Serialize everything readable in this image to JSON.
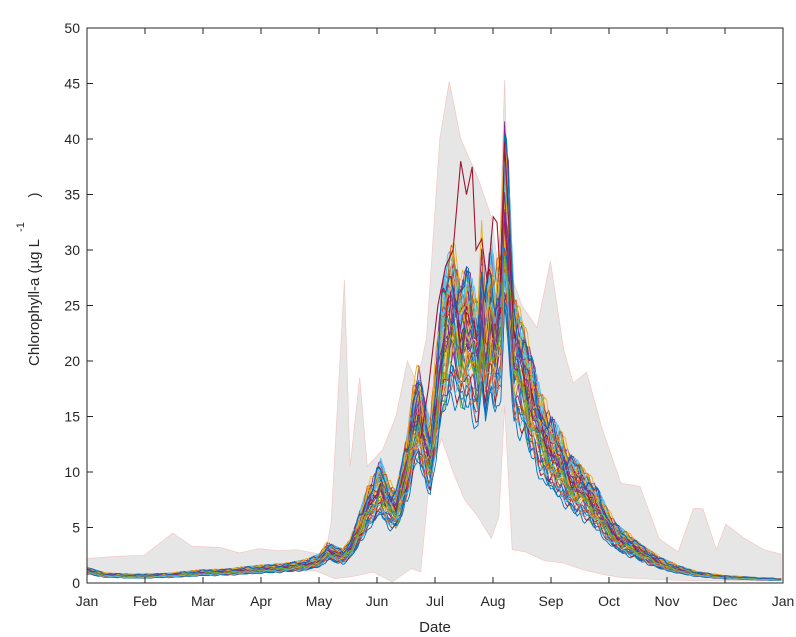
{
  "chart_data": {
    "type": "line",
    "xlabel": "Date",
    "ylabel": "Chlorophyll-a (µg L",
    "ylabel_superscript": "-1",
    "ylabel_close": ")",
    "ylim": [
      0,
      50
    ],
    "yticks": [
      0,
      5,
      10,
      15,
      20,
      25,
      30,
      35,
      40,
      45,
      50
    ],
    "xticks": [
      "Jan",
      "Feb",
      "Mar",
      "Apr",
      "May",
      "Jun",
      "Jul",
      "Aug",
      "Sep",
      "Oct",
      "Nov",
      "Dec",
      "Jan"
    ],
    "grid": false,
    "box": true,
    "envelope": {
      "color": "#e6e6e6",
      "edge_color": "#f4c7c3",
      "upper": [
        [
          0,
          2.2
        ],
        [
          15,
          2.4
        ],
        [
          30,
          2.5
        ],
        [
          45,
          4.5
        ],
        [
          55,
          3.3
        ],
        [
          70,
          3.2
        ],
        [
          80,
          2.7
        ],
        [
          90,
          3.1
        ],
        [
          100,
          2.9
        ],
        [
          110,
          3.0
        ],
        [
          125,
          2.5
        ],
        [
          128,
          5.5
        ],
        [
          135,
          27.3
        ],
        [
          138,
          10.5
        ],
        [
          143,
          18.5
        ],
        [
          147,
          10.5
        ],
        [
          155,
          12.0
        ],
        [
          162,
          15.0
        ],
        [
          168,
          20.0
        ],
        [
          173,
          18.0
        ],
        [
          178,
          22.0
        ],
        [
          185,
          40.0
        ],
        [
          190,
          45.2
        ],
        [
          196,
          40.0
        ],
        [
          205,
          36.5
        ],
        [
          212,
          33.0
        ],
        [
          216,
          28.0
        ],
        [
          219,
          45.3
        ],
        [
          222,
          28.0
        ],
        [
          228,
          25.0
        ],
        [
          236,
          23.0
        ],
        [
          243,
          29.0
        ],
        [
          250,
          21.0
        ],
        [
          255,
          18.0
        ],
        [
          262,
          19.0
        ],
        [
          270,
          14.0
        ],
        [
          280,
          9.0
        ],
        [
          290,
          8.7
        ],
        [
          300,
          4.0
        ],
        [
          310,
          2.8
        ],
        [
          318,
          6.7
        ],
        [
          323,
          6.7
        ],
        [
          330,
          3.0
        ],
        [
          335,
          5.3
        ],
        [
          345,
          4.0
        ],
        [
          355,
          3.0
        ],
        [
          364,
          2.6
        ]
      ],
      "lower": [
        [
          0,
          0.9
        ],
        [
          30,
          0.4
        ],
        [
          60,
          0.7
        ],
        [
          90,
          1.0
        ],
        [
          120,
          1.1
        ],
        [
          130,
          0.4
        ],
        [
          140,
          0.6
        ],
        [
          150,
          1.0
        ],
        [
          160,
          0.1
        ],
        [
          170,
          1.3
        ],
        [
          175,
          1.0
        ],
        [
          180,
          10.0
        ],
        [
          186,
          13.0
        ],
        [
          192,
          10.0
        ],
        [
          198,
          7.5
        ],
        [
          205,
          6.0
        ],
        [
          212,
          4.0
        ],
        [
          216,
          6.0
        ],
        [
          219,
          16.0
        ],
        [
          223,
          3.0
        ],
        [
          230,
          2.8
        ],
        [
          240,
          2.0
        ],
        [
          250,
          1.8
        ],
        [
          260,
          1.2
        ],
        [
          270,
          0.8
        ],
        [
          280,
          0.5
        ],
        [
          300,
          0.3
        ],
        [
          320,
          0.2
        ],
        [
          364,
          0.2
        ]
      ]
    },
    "ensemble": {
      "count": 50,
      "colors": [
        "#0072bd",
        "#d95319",
        "#edb120",
        "#7e2f8e",
        "#77ac30",
        "#4dbeee",
        "#a2142f"
      ],
      "mean": [
        [
          0,
          1.1
        ],
        [
          10,
          0.7
        ],
        [
          25,
          0.6
        ],
        [
          45,
          0.7
        ],
        [
          60,
          0.9
        ],
        [
          75,
          1.0
        ],
        [
          90,
          1.2
        ],
        [
          105,
          1.4
        ],
        [
          115,
          1.6
        ],
        [
          122,
          2.0
        ],
        [
          126,
          2.8
        ],
        [
          130,
          2.6
        ],
        [
          134,
          2.4
        ],
        [
          138,
          3.0
        ],
        [
          142,
          4.5
        ],
        [
          147,
          6.5
        ],
        [
          151,
          7.5
        ],
        [
          154,
          8.5
        ],
        [
          158,
          7.0
        ],
        [
          162,
          6.5
        ],
        [
          165,
          8.5
        ],
        [
          168,
          10.5
        ],
        [
          171,
          13.5
        ],
        [
          174,
          15.0
        ],
        [
          177,
          12.5
        ],
        [
          180,
          11.0
        ],
        [
          183,
          15.5
        ],
        [
          186,
          20.0
        ],
        [
          189,
          22.5
        ],
        [
          192,
          23.5
        ],
        [
          196,
          21.0
        ],
        [
          199,
          22.5
        ],
        [
          202,
          21.0
        ],
        [
          205,
          19.0
        ],
        [
          207,
          24.0
        ],
        [
          209,
          20.0
        ],
        [
          212,
          23.5
        ],
        [
          214,
          21.0
        ],
        [
          217,
          23.5
        ],
        [
          219,
          32.0
        ],
        [
          221,
          29.0
        ],
        [
          224,
          20.0
        ],
        [
          228,
          18.5
        ],
        [
          233,
          16.0
        ],
        [
          238,
          13.0
        ],
        [
          243,
          11.5
        ],
        [
          248,
          10.5
        ],
        [
          253,
          9.0
        ],
        [
          258,
          8.5
        ],
        [
          263,
          7.5
        ],
        [
          268,
          6.5
        ],
        [
          273,
          5.0
        ],
        [
          278,
          4.0
        ],
        [
          283,
          3.5
        ],
        [
          290,
          2.8
        ],
        [
          300,
          1.8
        ],
        [
          310,
          1.2
        ],
        [
          320,
          0.8
        ],
        [
          335,
          0.5
        ],
        [
          350,
          0.4
        ],
        [
          364,
          0.3
        ]
      ],
      "highlight": [
        [
          175,
          13.0
        ],
        [
          179,
          17.5
        ],
        [
          184,
          25.0
        ],
        [
          188,
          28.5
        ],
        [
          192,
          30.0
        ],
        [
          196,
          38.0
        ],
        [
          199,
          35.0
        ],
        [
          202,
          37.5
        ],
        [
          204,
          30.0
        ],
        [
          207,
          31.0
        ],
        [
          210,
          27.0
        ],
        [
          213,
          33.0
        ],
        [
          215,
          32.5
        ],
        [
          217,
          27.0
        ],
        [
          219,
          39.7
        ],
        [
          221,
          33.0
        ],
        [
          224,
          22.0
        ]
      ]
    }
  }
}
